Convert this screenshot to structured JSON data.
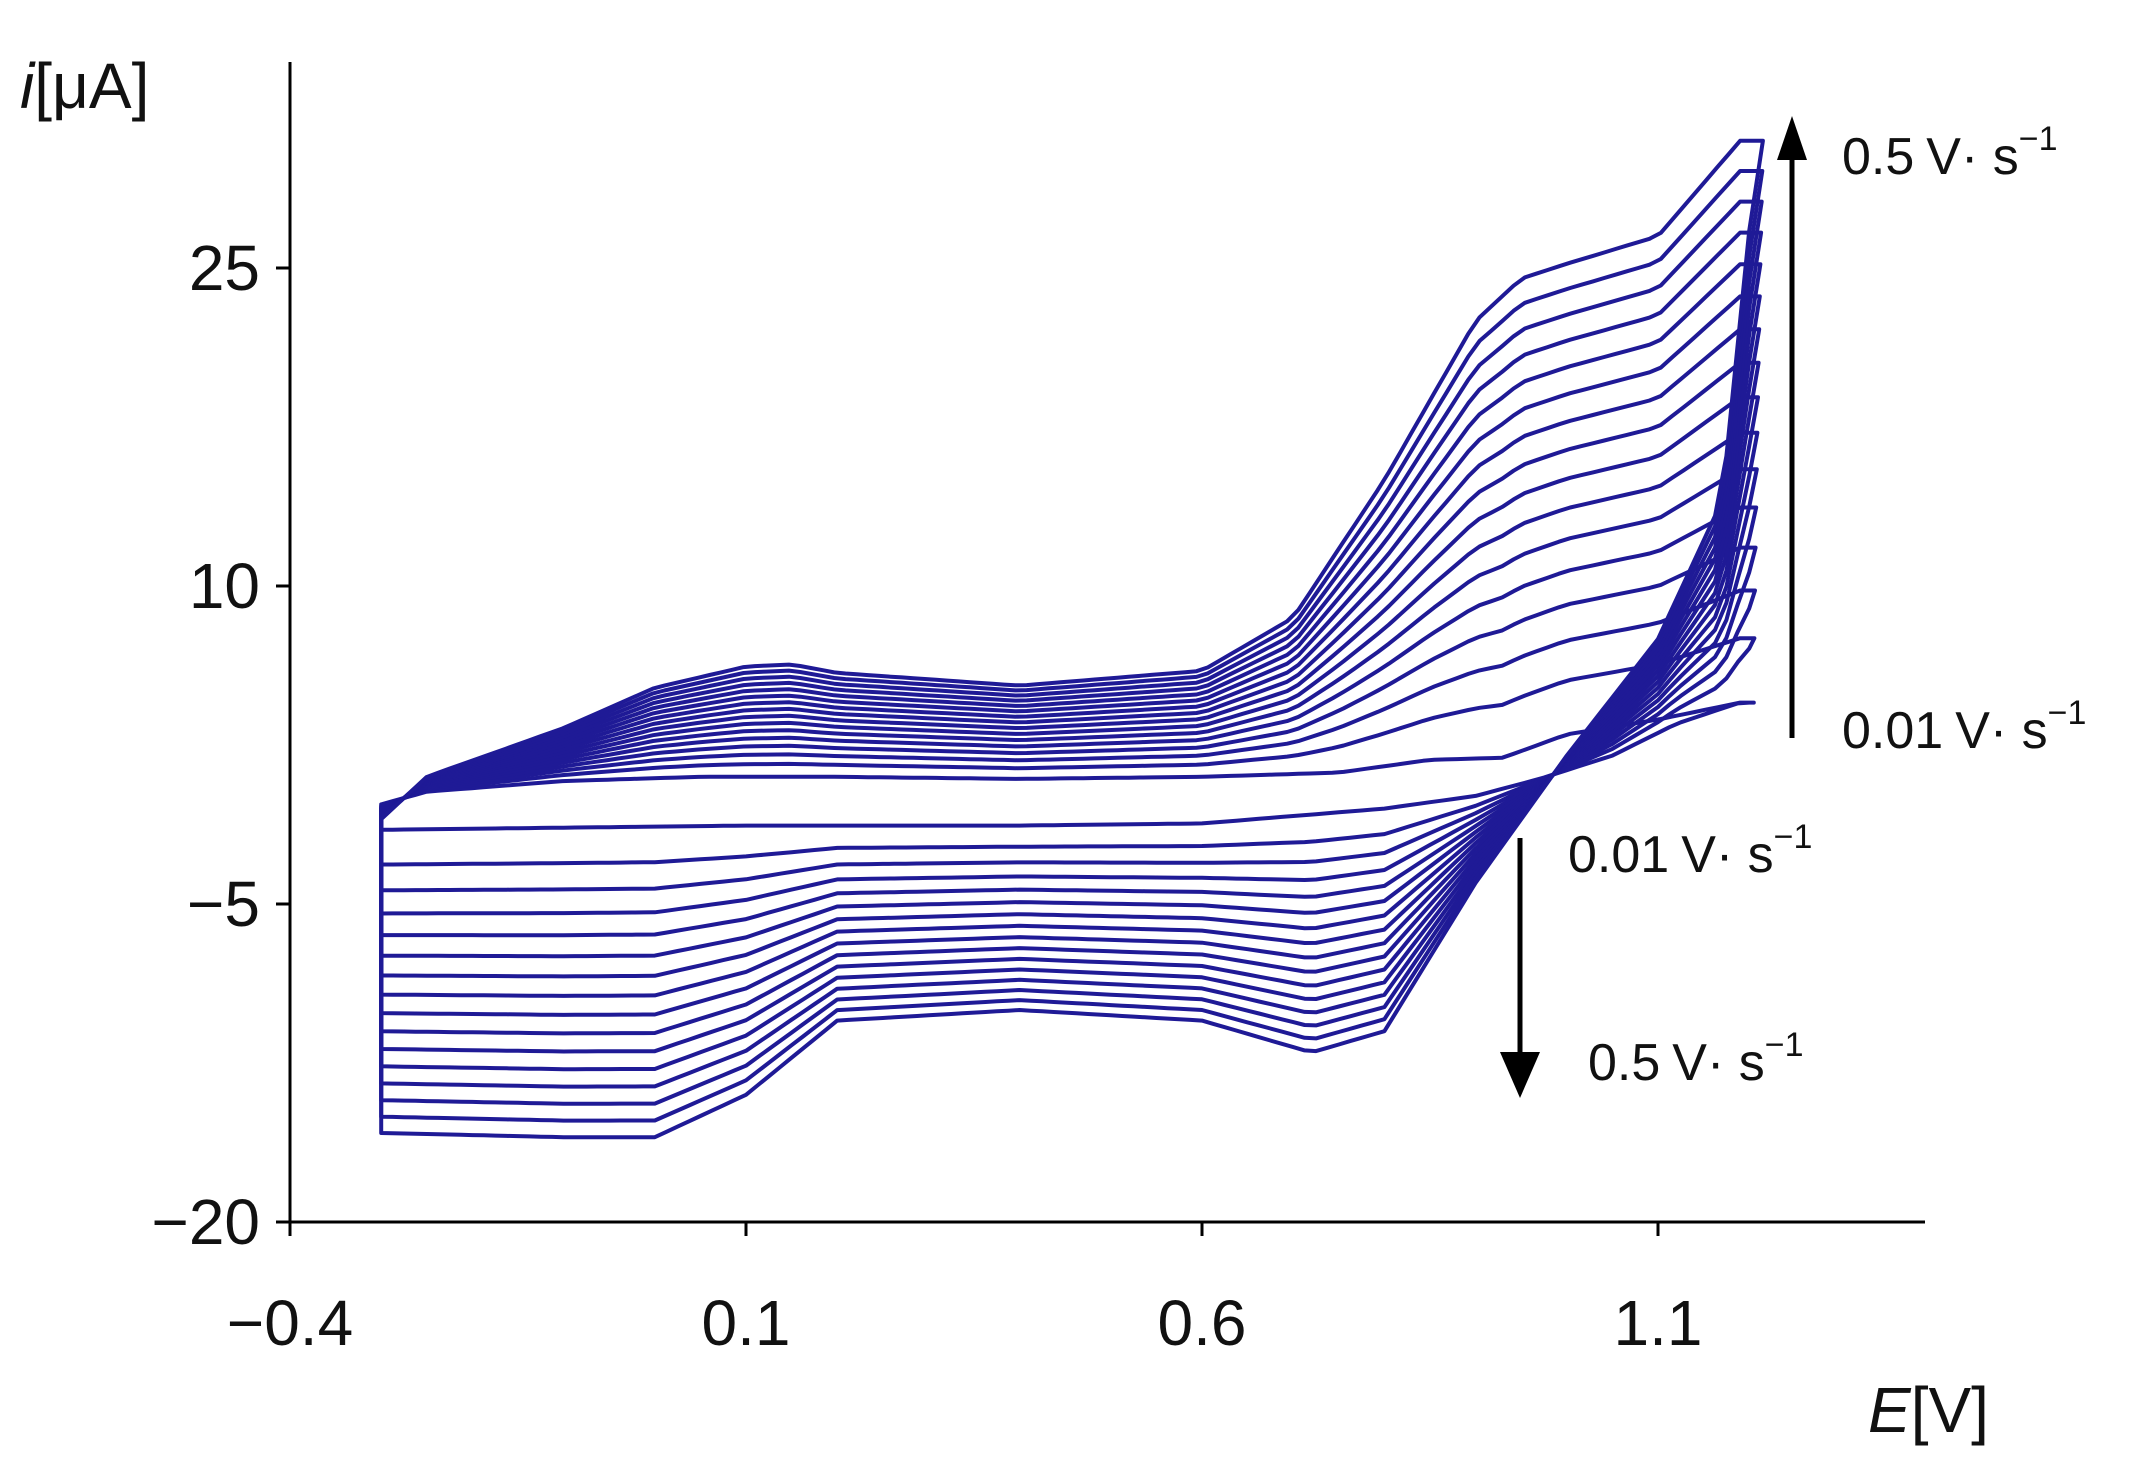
{
  "chart_data": {
    "type": "line",
    "xlabel_italic": "E",
    "xlabel_unit": "[V]",
    "ylabel_italic": "i",
    "ylabel_unit": "[μA]",
    "xlim": [
      -0.4,
      1.4
    ],
    "ylim": [
      -20,
      35
    ],
    "x_ticks": [
      -0.4,
      0.1,
      0.6,
      1.1
    ],
    "x_tick_labels": [
      "−0.4",
      "0.1",
      "0.6",
      "1.1"
    ],
    "y_ticks": [
      -20,
      -5,
      10,
      25
    ],
    "y_tick_labels": [
      "−20",
      "−5",
      "10",
      "25"
    ],
    "grid": false,
    "curve_color": "#1f1a96",
    "scan_range": [
      -0.3,
      1.21
    ],
    "num_curves": 16,
    "envelope_min": {
      "forward": [
        [
          -0.3,
          -0.3
        ],
        [
          -0.25,
          0.3
        ],
        [
          -0.1,
          0.8
        ],
        [
          0.05,
          1.0
        ],
        [
          0.2,
          1.0
        ],
        [
          0.4,
          0.9
        ],
        [
          0.6,
          1.0
        ],
        [
          0.75,
          1.2
        ],
        [
          0.85,
          1.8
        ],
        [
          0.93,
          1.9
        ],
        [
          1.0,
          3.0
        ],
        [
          1.1,
          3.7
        ],
        [
          1.19,
          4.5
        ]
      ],
      "reverse": [
        [
          1.19,
          4.5
        ],
        [
          1.12,
          3.5
        ],
        [
          1.05,
          2.0
        ],
        [
          0.97,
          0.9
        ],
        [
          0.9,
          0.1
        ],
        [
          0.8,
          -0.5
        ],
        [
          0.6,
          -1.2
        ],
        [
          0.4,
          -1.3
        ],
        [
          0.2,
          -1.3
        ],
        [
          0.1,
          -1.3
        ],
        [
          -0.1,
          -1.4
        ],
        [
          -0.3,
          -1.5
        ]
      ]
    },
    "envelope_max": {
      "forward": [
        [
          -0.3,
          -1.0
        ],
        [
          -0.25,
          1.0
        ],
        [
          -0.1,
          3.3
        ],
        [
          0.0,
          5.2
        ],
        [
          0.1,
          6.2
        ],
        [
          0.15,
          6.3
        ],
        [
          0.2,
          5.9
        ],
        [
          0.4,
          5.3
        ],
        [
          0.6,
          6.0
        ],
        [
          0.7,
          8.5
        ],
        [
          0.8,
          15.0
        ],
        [
          0.9,
          22.5
        ],
        [
          0.95,
          24.5
        ],
        [
          1.0,
          25.2
        ],
        [
          1.1,
          26.5
        ],
        [
          1.19,
          31.0
        ]
      ],
      "reverse": [
        [
          1.21,
          31.0
        ],
        [
          1.17,
          14.0
        ],
        [
          1.1,
          7.5
        ],
        [
          1.0,
          2.0
        ],
        [
          0.9,
          -4.0
        ],
        [
          0.8,
          -11.0
        ],
        [
          0.72,
          -12.0
        ],
        [
          0.6,
          -10.5
        ],
        [
          0.4,
          -10.0
        ],
        [
          0.2,
          -10.5
        ],
        [
          0.1,
          -14.0
        ],
        [
          0.0,
          -16.0
        ],
        [
          -0.1,
          -16.0
        ],
        [
          -0.3,
          -15.8
        ]
      ]
    },
    "annotations": [
      {
        "value": "0.5",
        "unit": "V· s",
        "exponent": "−1"
      },
      {
        "value": "0.01",
        "unit": "V· s",
        "exponent": "−1"
      },
      {
        "value": "0.01",
        "unit": "V· s",
        "exponent": "−1"
      },
      {
        "value": "0.5",
        "unit": "V· s",
        "exponent": "−1"
      }
    ]
  }
}
